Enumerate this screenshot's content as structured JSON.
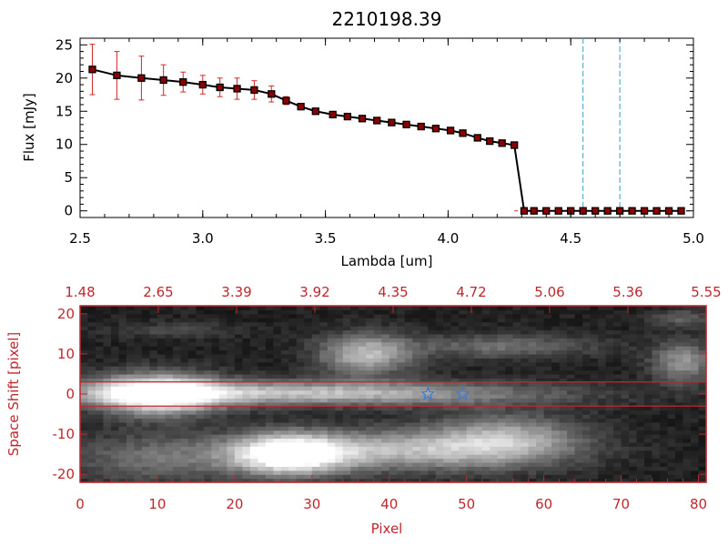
{
  "title": "2210198.39",
  "colors": {
    "axis_top": "#000000",
    "axis_bottom": "#c0272d",
    "marker": "#8b0000",
    "errorbar": "#d62728",
    "line": "#000000",
    "dashed": "#3aa0c8",
    "star": "#3a7bd5"
  },
  "chart_data": [
    {
      "type": "line",
      "name": "spectrum",
      "xlabel": "Lambda [um]",
      "ylabel": "Flux [mJy]",
      "xlim": [
        2.5,
        5.0
      ],
      "ylim": [
        -1,
        26
      ],
      "xticks": [
        "2.5",
        "3.0",
        "3.5",
        "4.0",
        "4.5",
        "5.0"
      ],
      "yticks": [
        "0",
        "5",
        "10",
        "15",
        "20",
        "25"
      ],
      "grid": false,
      "x": [
        2.55,
        2.65,
        2.75,
        2.84,
        2.92,
        3.0,
        3.07,
        3.14,
        3.21,
        3.28,
        3.34,
        3.4,
        3.46,
        3.53,
        3.59,
        3.65,
        3.71,
        3.77,
        3.83,
        3.89,
        3.95,
        4.01,
        4.06,
        4.12,
        4.17,
        4.22,
        4.27,
        4.31,
        4.35,
        4.4,
        4.45,
        4.5,
        4.55,
        4.6,
        4.65,
        4.7,
        4.75,
        4.8,
        4.85,
        4.9,
        4.95
      ],
      "y": [
        21.3,
        20.4,
        20.0,
        19.7,
        19.4,
        19.0,
        18.6,
        18.4,
        18.2,
        17.6,
        16.6,
        15.7,
        15.0,
        14.5,
        14.2,
        13.9,
        13.6,
        13.3,
        13.0,
        12.7,
        12.4,
        12.1,
        11.7,
        11.0,
        10.5,
        10.2,
        9.9,
        0.0,
        0.0,
        0.0,
        0.0,
        0.0,
        0.0,
        0.0,
        0.0,
        0.0,
        0.0,
        0.0,
        0.0,
        0.0,
        0.0
      ],
      "yerr": [
        3.8,
        3.6,
        3.3,
        2.3,
        1.5,
        1.4,
        1.4,
        1.6,
        1.4,
        1.2,
        0.6,
        0.4,
        0,
        0,
        0,
        0,
        0,
        0,
        0,
        0,
        0,
        0,
        0,
        0,
        0,
        0,
        0,
        0,
        0,
        0,
        0,
        0,
        0,
        0,
        0,
        0,
        0,
        0,
        0,
        0,
        0
      ],
      "vlines": [
        4.55,
        4.7
      ]
    },
    {
      "type": "heatmap",
      "name": "2d spectrum",
      "xlabel": "Pixel",
      "ylabel": "Space Shift [pixel]",
      "xlim": [
        0,
        81
      ],
      "ylim": [
        -22,
        22
      ],
      "xticks": [
        "0",
        "10",
        "20",
        "30",
        "40",
        "50",
        "60",
        "70",
        "80"
      ],
      "yticks": [
        "-20",
        "-10",
        "0",
        "10",
        "20"
      ],
      "top_ticks": [
        "1.48",
        "2.65",
        "3.39",
        "3.92",
        "4.35",
        "4.72",
        "5.06",
        "5.36",
        "5.55"
      ],
      "hlines": [
        3,
        -3
      ],
      "stars": [
        45,
        49.5
      ],
      "sources": [
        {
          "px": 10,
          "sy": 0,
          "w": 8,
          "h": 5,
          "amp": 0.95
        },
        {
          "px": 22,
          "sy": 0.5,
          "w": 30,
          "h": 3,
          "amp": 0.45
        },
        {
          "px": 40,
          "sy": 0,
          "w": 25,
          "h": 3,
          "amp": 0.25
        },
        {
          "px": 27,
          "sy": -15,
          "w": 7,
          "h": 5,
          "amp": 0.9
        },
        {
          "px": 40,
          "sy": -14,
          "w": 18,
          "h": 5,
          "amp": 0.55
        },
        {
          "px": 55,
          "sy": -11,
          "w": 10,
          "h": 6,
          "amp": 0.5
        },
        {
          "px": 10,
          "sy": -16,
          "w": 12,
          "h": 6,
          "amp": 0.3
        },
        {
          "px": 37,
          "sy": 10,
          "w": 6,
          "h": 5,
          "amp": 0.6
        },
        {
          "px": 55,
          "sy": 12,
          "w": 12,
          "h": 3,
          "amp": 0.3
        },
        {
          "px": 78,
          "sy": 8,
          "w": 4,
          "h": 5,
          "amp": 0.45
        },
        {
          "px": 78,
          "sy": 19,
          "w": 4,
          "h": 2,
          "amp": 0.25
        },
        {
          "px": 12,
          "sy": 16,
          "w": 8,
          "h": 2,
          "amp": 0.15
        }
      ]
    }
  ]
}
